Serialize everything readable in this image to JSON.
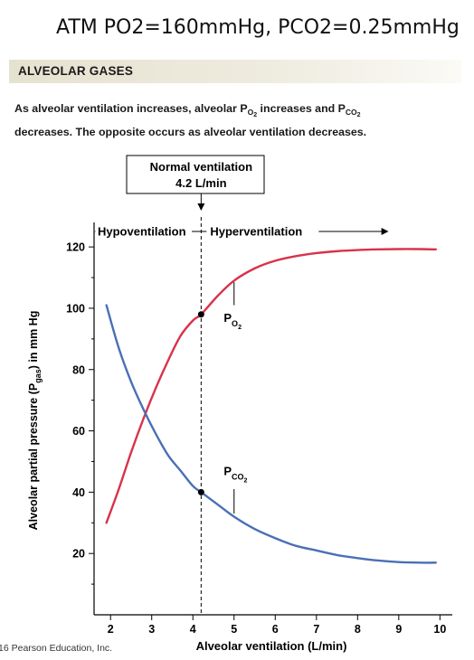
{
  "slide_title": "ATM PO2=160mmHg, PCO2=0.25mmHg",
  "section_banner": "ALVEOLAR GASES",
  "caption": {
    "part1": "As alveolar ventilation increases, alveolar P",
    "sub1": "O",
    "sub1_sub": "2",
    "part2": " increases and P",
    "sub2": "CO",
    "sub2_sub": "2",
    "line2": "decreases. The opposite occurs as alveolar ventilation decreases."
  },
  "copyright": "16 Pearson Education, Inc.",
  "colors": {
    "po2": "#d9324a",
    "pco2": "#4a6fb5",
    "axis": "#000000"
  },
  "chart_data": {
    "type": "line",
    "xlabel": "Alveolar ventilation (L/min)",
    "ylabel": "Alveolar partial pressure (Pgas) in mm Hg",
    "ylabel_parts": {
      "pre": "Alveolar partial pressure (P",
      "sub": "gas",
      "post": ") in mm Hg"
    },
    "xlim": [
      1.6,
      10.3
    ],
    "ylim": [
      0,
      128
    ],
    "x_ticks": [
      2,
      3,
      4,
      5,
      6,
      7,
      8,
      9,
      10
    ],
    "y_ticks": [
      20,
      40,
      60,
      80,
      100,
      120
    ],
    "normal_ventilation": {
      "x": 4.2,
      "label_line1": "Normal ventilation",
      "label_line2": "4.2 L/min"
    },
    "regions": [
      {
        "label": "Hypoventilation",
        "from": 1.6,
        "to": 4.2
      },
      {
        "label": "Hyperventilation",
        "from": 4.2,
        "to": 8.6
      }
    ],
    "series": [
      {
        "name": "PO2",
        "label_main": "P",
        "label_sub": "O",
        "label_subsub": "2",
        "color": "#d9324a",
        "x": [
          1.9,
          2.2,
          2.5,
          2.8,
          3.1,
          3.4,
          3.7,
          4.0,
          4.2,
          4.6,
          5.0,
          5.5,
          6.0,
          6.5,
          7.0,
          7.5,
          8.0,
          8.5,
          9.0,
          9.5,
          9.9
        ],
        "y": [
          30,
          41,
          53,
          64,
          74,
          83,
          91,
          96,
          98,
          104,
          109,
          113,
          115.5,
          117,
          118,
          118.6,
          119,
          119.2,
          119.3,
          119.3,
          119.2
        ]
      },
      {
        "name": "PCO2",
        "label_main": "P",
        "label_sub": "CO",
        "label_subsub": "2",
        "color": "#4a6fb5",
        "x": [
          1.9,
          2.2,
          2.5,
          2.8,
          3.1,
          3.4,
          3.7,
          4.0,
          4.2,
          4.6,
          5.0,
          5.5,
          6.0,
          6.5,
          7.0,
          7.5,
          8.0,
          8.5,
          9.0,
          9.5,
          9.9
        ],
        "y": [
          101,
          87,
          76,
          67,
          59,
          52,
          47,
          42,
          40,
          36,
          32,
          28,
          25,
          22.5,
          21,
          19.5,
          18.5,
          17.7,
          17.2,
          17,
          17
        ]
      }
    ],
    "markers": [
      {
        "series": "PO2",
        "x": 4.2,
        "y": 98
      },
      {
        "series": "PCO2",
        "x": 4.2,
        "y": 40
      }
    ]
  }
}
